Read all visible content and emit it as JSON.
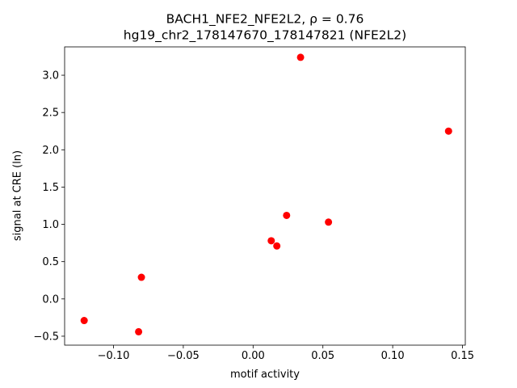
{
  "chart_data": {
    "type": "scatter",
    "title_line1": "BACH1_NFE2_NFE2L2, ρ = 0.76",
    "title_line2": "hg19_chr2_178147670_178147821 (NFE2L2)",
    "xlabel": "motif activity",
    "ylabel": "signal at CRE (ln)",
    "xlim": [
      -0.135,
      0.152
    ],
    "ylim": [
      -0.62,
      3.38
    ],
    "xticks": [
      {
        "value": -0.1,
        "label": "−0.10"
      },
      {
        "value": -0.05,
        "label": "−0.05"
      },
      {
        "value": 0.0,
        "label": "0.00"
      },
      {
        "value": 0.05,
        "label": "0.05"
      },
      {
        "value": 0.1,
        "label": "0.10"
      },
      {
        "value": 0.15,
        "label": "0.15"
      }
    ],
    "yticks": [
      {
        "value": -0.5,
        "label": "−0.5"
      },
      {
        "value": 0.0,
        "label": "0.0"
      },
      {
        "value": 0.5,
        "label": "0.5"
      },
      {
        "value": 1.0,
        "label": "1.0"
      },
      {
        "value": 1.5,
        "label": "1.5"
      },
      {
        "value": 2.0,
        "label": "2.0"
      },
      {
        "value": 2.5,
        "label": "2.5"
      },
      {
        "value": 3.0,
        "label": "3.0"
      }
    ],
    "marker_color": "#ff0000",
    "points": [
      {
        "x": -0.121,
        "y": -0.29
      },
      {
        "x": -0.082,
        "y": -0.44
      },
      {
        "x": -0.08,
        "y": 0.29
      },
      {
        "x": 0.013,
        "y": 0.78
      },
      {
        "x": 0.017,
        "y": 0.71
      },
      {
        "x": 0.024,
        "y": 1.12
      },
      {
        "x": 0.034,
        "y": 3.24
      },
      {
        "x": 0.054,
        "y": 1.03
      },
      {
        "x": 0.14,
        "y": 2.25
      }
    ]
  }
}
